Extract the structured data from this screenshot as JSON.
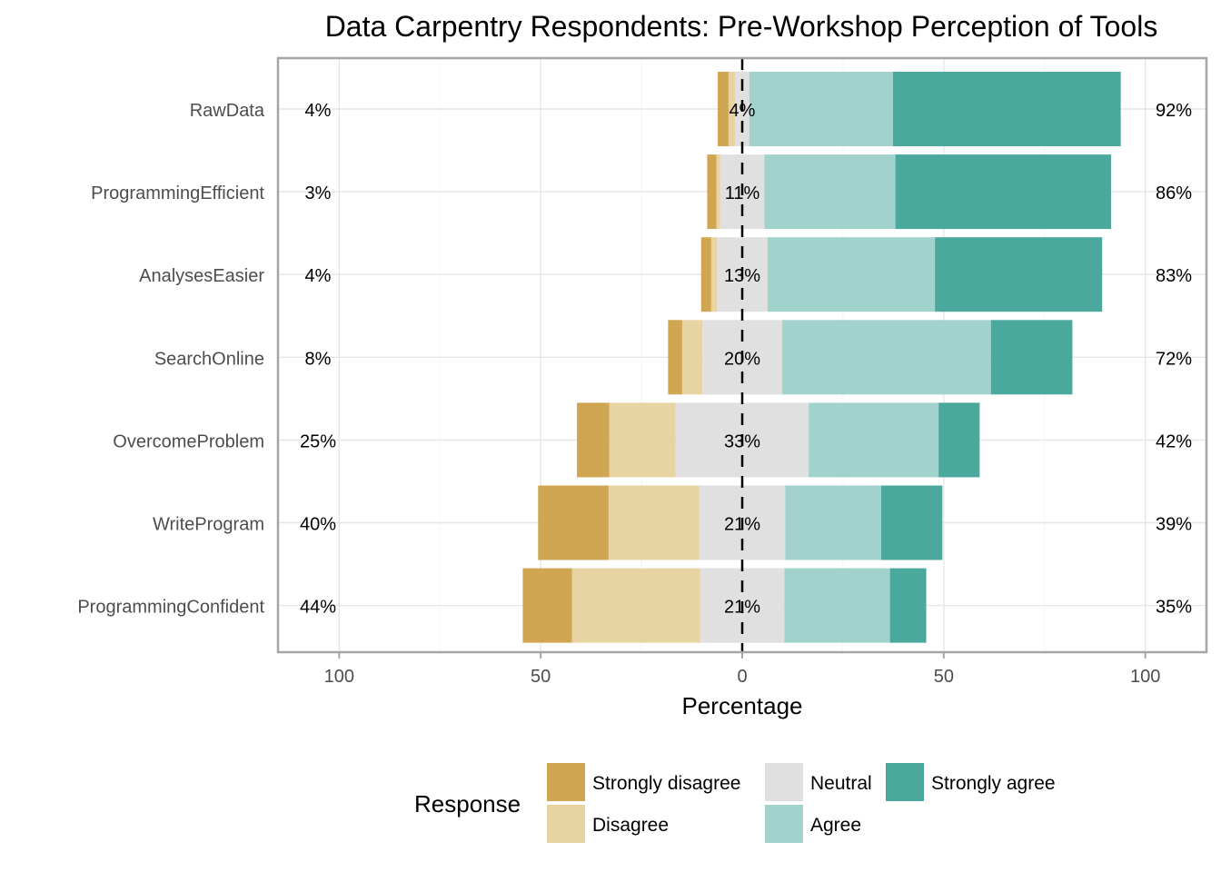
{
  "chart_data": {
    "type": "bar",
    "orientation": "horizontal-diverging-stacked",
    "title": "Data Carpentry Respondents: Pre-Workshop Perception of Tools",
    "xlabel": "Percentage",
    "ylabel": "",
    "xlim": [
      -100,
      100
    ],
    "x_tick_values": [
      -100,
      -50,
      0,
      50,
      100
    ],
    "x_tick_labels": [
      "100",
      "50",
      "0",
      "50",
      "100"
    ],
    "grid": true,
    "legend_title": "Response",
    "legend_position": "bottom",
    "categories": [
      "RawData",
      "ProgrammingEfficient",
      "AnalysesEasier",
      "SearchOnline",
      "OvercomeProblem",
      "WriteProgram",
      "ProgrammingConfident"
    ],
    "series": [
      {
        "name": "Strongly disagree",
        "color": "#D0A653",
        "values": [
          2.7,
          2.3,
          2.5,
          3.5,
          8.0,
          17.5,
          12.2
        ]
      },
      {
        "name": "Disagree",
        "color": "#E8D3A3",
        "values": [
          1.6,
          0.9,
          1.4,
          5.0,
          16.5,
          22.5,
          31.8
        ]
      },
      {
        "name": "Neutral",
        "color": "#E0E0E0",
        "values": [
          3.6,
          11.0,
          12.6,
          19.8,
          33.0,
          21.3,
          20.9
        ]
      },
      {
        "name": "Agree",
        "color": "#A1D3CC",
        "values": [
          35.6,
          32.5,
          41.5,
          51.8,
          32.2,
          23.8,
          26.2
        ]
      },
      {
        "name": "Strongly agree",
        "color": "#4BA89D",
        "values": [
          56.5,
          53.5,
          41.5,
          20.2,
          10.2,
          15.2,
          9.0
        ]
      }
    ],
    "neutral_labels": [
      "4%",
      "11%",
      "13%",
      "20%",
      "33%",
      "21%",
      "21%"
    ],
    "low_labels": [
      "4%",
      "3%",
      "4%",
      "8%",
      "25%",
      "40%",
      "44%"
    ],
    "high_labels": [
      "92%",
      "86%",
      "83%",
      "72%",
      "42%",
      "39%",
      "35%"
    ]
  }
}
